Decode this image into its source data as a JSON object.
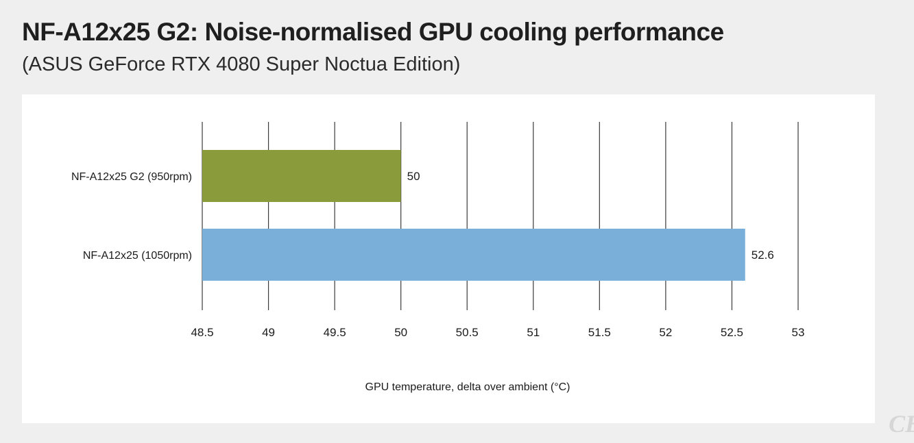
{
  "header": {
    "title": "NF-A12x25 G2: Noise-normalised GPU cooling performance",
    "subtitle": "(ASUS GeForce RTX 4080 Super Noctua Edition)"
  },
  "chart_data": {
    "type": "bar",
    "orientation": "horizontal",
    "categories": [
      "NF-A12x25 G2 (950rpm)",
      "NF-A12x25 (1050rpm)"
    ],
    "values": [
      50,
      52.6
    ],
    "value_labels": [
      "50",
      "52.6"
    ],
    "colors": [
      "#8a9b3b",
      "#79afd8"
    ],
    "xlim": [
      48.5,
      53
    ],
    "xticks": [
      48.5,
      49,
      49.5,
      50,
      50.5,
      51,
      51.5,
      52,
      52.5,
      53
    ],
    "xtick_labels": [
      "48.5",
      "49",
      "49.5",
      "50",
      "50.5",
      "51",
      "51.5",
      "52",
      "52.5",
      "53"
    ],
    "xlabel": "GPU temperature, delta over ambient (°C)",
    "ylabel": "",
    "grid": true,
    "legend": "none"
  },
  "logo": {
    "text": "CB"
  }
}
